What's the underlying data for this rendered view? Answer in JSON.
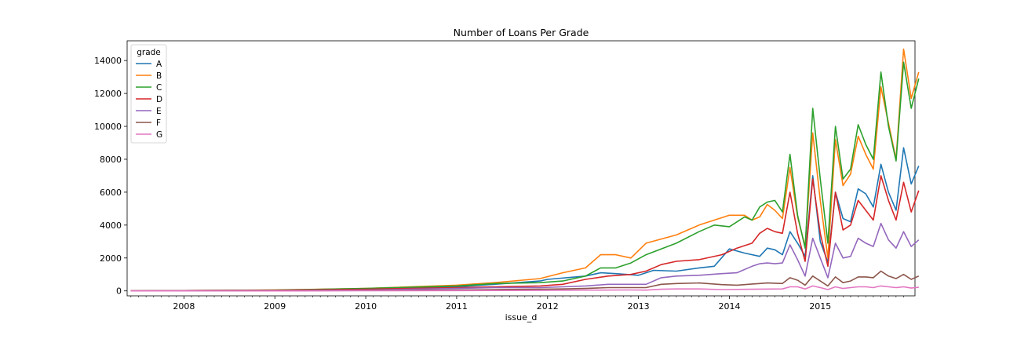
{
  "chart_data": {
    "type": "line",
    "title": "Number of Loans Per Grade",
    "xlabel": "issue_d",
    "ylabel": "",
    "xlim": [
      "2007-06",
      "2015-12"
    ],
    "ylim": [
      -300,
      15200
    ],
    "x_ticks": [
      "2008",
      "2009",
      "2010",
      "2011",
      "2012",
      "2013",
      "2014",
      "2015"
    ],
    "y_ticks": [
      0,
      2000,
      4000,
      6000,
      8000,
      10000,
      12000,
      14000
    ],
    "grid": false,
    "legend": {
      "title": "grade",
      "position": "top-left"
    },
    "series": [
      {
        "name": "A",
        "color": "#1f77b4",
        "points": [
          [
            "2007-06",
            0
          ],
          [
            "2008-01",
            20
          ],
          [
            "2009-01",
            30
          ],
          [
            "2010-01",
            100
          ],
          [
            "2011-01",
            250
          ],
          [
            "2011-06",
            400
          ],
          [
            "2011-12",
            600
          ],
          [
            "2012-01",
            700
          ],
          [
            "2012-06",
            900
          ],
          [
            "2012-08",
            1100
          ],
          [
            "2012-10",
            1050
          ],
          [
            "2013-01",
            950
          ],
          [
            "2013-03",
            1250
          ],
          [
            "2013-06",
            1200
          ],
          [
            "2013-09",
            1400
          ],
          [
            "2013-11",
            1500
          ],
          [
            "2014-01",
            2550
          ],
          [
            "2014-03",
            2300
          ],
          [
            "2014-05",
            2100
          ],
          [
            "2014-06",
            2600
          ],
          [
            "2014-07",
            2500
          ],
          [
            "2014-08",
            2200
          ],
          [
            "2014-09",
            3600
          ],
          [
            "2014-10",
            2900
          ],
          [
            "2014-11",
            2100
          ],
          [
            "2014-12",
            7000
          ],
          [
            "2015-01",
            3000
          ],
          [
            "2015-02",
            1750
          ],
          [
            "2015-03",
            6000
          ],
          [
            "2015-04",
            4400
          ],
          [
            "2015-05",
            4200
          ],
          [
            "2015-06",
            6200
          ],
          [
            "2015-07",
            5900
          ],
          [
            "2015-08",
            5100
          ],
          [
            "2015-09",
            7700
          ],
          [
            "2015-10",
            6000
          ],
          [
            "2015-11",
            4900
          ],
          [
            "2015-12",
            8700
          ],
          [
            "2016-01",
            6500
          ],
          [
            "2016-02",
            7600
          ]
        ]
      },
      {
        "name": "B",
        "color": "#ff7f0e",
        "points": [
          [
            "2007-06",
            0
          ],
          [
            "2008-01",
            20
          ],
          [
            "2009-01",
            60
          ],
          [
            "2010-01",
            150
          ],
          [
            "2011-01",
            350
          ],
          [
            "2011-06",
            500
          ],
          [
            "2011-12",
            750
          ],
          [
            "2012-03",
            1100
          ],
          [
            "2012-06",
            1400
          ],
          [
            "2012-08",
            2200
          ],
          [
            "2012-10",
            2200
          ],
          [
            "2012-12",
            2000
          ],
          [
            "2013-02",
            2900
          ],
          [
            "2013-06",
            3400
          ],
          [
            "2013-09",
            4000
          ],
          [
            "2013-11",
            4300
          ],
          [
            "2014-01",
            4600
          ],
          [
            "2014-03",
            4600
          ],
          [
            "2014-04",
            4300
          ],
          [
            "2014-05",
            4500
          ],
          [
            "2014-06",
            5250
          ],
          [
            "2014-07",
            4900
          ],
          [
            "2014-08",
            4400
          ],
          [
            "2014-09",
            7500
          ],
          [
            "2014-10",
            4500
          ],
          [
            "2014-11",
            2700
          ],
          [
            "2014-12",
            9600
          ],
          [
            "2015-01",
            5500
          ],
          [
            "2015-02",
            2000
          ],
          [
            "2015-03",
            9200
          ],
          [
            "2015-04",
            6400
          ],
          [
            "2015-05",
            7100
          ],
          [
            "2015-06",
            9400
          ],
          [
            "2015-07",
            8300
          ],
          [
            "2015-08",
            7400
          ],
          [
            "2015-09",
            12400
          ],
          [
            "2015-10",
            10200
          ],
          [
            "2015-11",
            8000
          ],
          [
            "2015-12",
            14700
          ],
          [
            "2016-01",
            11700
          ],
          [
            "2016-02",
            13300
          ]
        ]
      },
      {
        "name": "C",
        "color": "#2ca02c",
        "points": [
          [
            "2007-06",
            0
          ],
          [
            "2008-01",
            20
          ],
          [
            "2009-01",
            50
          ],
          [
            "2010-01",
            150
          ],
          [
            "2011-01",
            300
          ],
          [
            "2011-06",
            450
          ],
          [
            "2011-12",
            500
          ],
          [
            "2012-03",
            600
          ],
          [
            "2012-06",
            900
          ],
          [
            "2012-08",
            1400
          ],
          [
            "2012-10",
            1400
          ],
          [
            "2012-12",
            1700
          ],
          [
            "2013-02",
            2200
          ],
          [
            "2013-06",
            2900
          ],
          [
            "2013-09",
            3600
          ],
          [
            "2013-11",
            4000
          ],
          [
            "2014-01",
            3900
          ],
          [
            "2014-03",
            4500
          ],
          [
            "2014-04",
            4300
          ],
          [
            "2014-05",
            5100
          ],
          [
            "2014-06",
            5400
          ],
          [
            "2014-07",
            5500
          ],
          [
            "2014-08",
            4800
          ],
          [
            "2014-09",
            8300
          ],
          [
            "2014-10",
            4600
          ],
          [
            "2014-11",
            2600
          ],
          [
            "2014-12",
            11100
          ],
          [
            "2015-01",
            6800
          ],
          [
            "2015-02",
            2900
          ],
          [
            "2015-03",
            10000
          ],
          [
            "2015-04",
            6800
          ],
          [
            "2015-05",
            7400
          ],
          [
            "2015-06",
            10100
          ],
          [
            "2015-07",
            8900
          ],
          [
            "2015-08",
            8000
          ],
          [
            "2015-09",
            13300
          ],
          [
            "2015-10",
            10000
          ],
          [
            "2015-11",
            7900
          ],
          [
            "2015-12",
            13900
          ],
          [
            "2016-01",
            11100
          ],
          [
            "2016-02",
            12900
          ]
        ]
      },
      {
        "name": "D",
        "color": "#d62728",
        "points": [
          [
            "2007-06",
            0
          ],
          [
            "2008-01",
            20
          ],
          [
            "2009-01",
            40
          ],
          [
            "2010-01",
            100
          ],
          [
            "2011-01",
            200
          ],
          [
            "2011-06",
            250
          ],
          [
            "2011-12",
            300
          ],
          [
            "2012-03",
            400
          ],
          [
            "2012-06",
            700
          ],
          [
            "2012-09",
            900
          ],
          [
            "2012-12",
            1000
          ],
          [
            "2013-02",
            1200
          ],
          [
            "2013-04",
            1600
          ],
          [
            "2013-06",
            1800
          ],
          [
            "2013-09",
            1900
          ],
          [
            "2013-12",
            2200
          ],
          [
            "2014-02",
            2600
          ],
          [
            "2014-04",
            2900
          ],
          [
            "2014-05",
            3500
          ],
          [
            "2014-06",
            3800
          ],
          [
            "2014-07",
            3600
          ],
          [
            "2014-08",
            3500
          ],
          [
            "2014-09",
            6000
          ],
          [
            "2014-10",
            3500
          ],
          [
            "2014-11",
            1800
          ],
          [
            "2014-12",
            6800
          ],
          [
            "2015-01",
            3500
          ],
          [
            "2015-02",
            1500
          ],
          [
            "2015-03",
            6000
          ],
          [
            "2015-04",
            3700
          ],
          [
            "2015-05",
            4000
          ],
          [
            "2015-06",
            5500
          ],
          [
            "2015-07",
            4900
          ],
          [
            "2015-08",
            4300
          ],
          [
            "2015-09",
            7000
          ],
          [
            "2015-10",
            5500
          ],
          [
            "2015-11",
            4300
          ],
          [
            "2015-12",
            6600
          ],
          [
            "2016-01",
            4800
          ],
          [
            "2016-02",
            6100
          ]
        ]
      },
      {
        "name": "E",
        "color": "#9467bd",
        "points": [
          [
            "2007-06",
            0
          ],
          [
            "2008-01",
            10
          ],
          [
            "2009-01",
            20
          ],
          [
            "2010-01",
            60
          ],
          [
            "2011-01",
            150
          ],
          [
            "2011-06",
            200
          ],
          [
            "2011-12",
            200
          ],
          [
            "2012-03",
            250
          ],
          [
            "2012-06",
            300
          ],
          [
            "2012-09",
            400
          ],
          [
            "2012-12",
            400
          ],
          [
            "2013-02",
            400
          ],
          [
            "2013-04",
            800
          ],
          [
            "2013-06",
            900
          ],
          [
            "2013-09",
            950
          ],
          [
            "2013-12",
            1050
          ],
          [
            "2014-02",
            1100
          ],
          [
            "2014-04",
            1500
          ],
          [
            "2014-05",
            1650
          ],
          [
            "2014-06",
            1700
          ],
          [
            "2014-07",
            1650
          ],
          [
            "2014-08",
            1700
          ],
          [
            "2014-09",
            2800
          ],
          [
            "2014-10",
            1900
          ],
          [
            "2014-11",
            900
          ],
          [
            "2014-12",
            3200
          ],
          [
            "2015-01",
            2000
          ],
          [
            "2015-02",
            800
          ],
          [
            "2015-03",
            2900
          ],
          [
            "2015-04",
            2000
          ],
          [
            "2015-05",
            2100
          ],
          [
            "2015-06",
            3200
          ],
          [
            "2015-07",
            2900
          ],
          [
            "2015-08",
            2700
          ],
          [
            "2015-09",
            4100
          ],
          [
            "2015-10",
            3100
          ],
          [
            "2015-11",
            2600
          ],
          [
            "2015-12",
            3600
          ],
          [
            "2016-01",
            2700
          ],
          [
            "2016-02",
            3100
          ]
        ]
      },
      {
        "name": "F",
        "color": "#8c564b",
        "points": [
          [
            "2007-06",
            0
          ],
          [
            "2008-01",
            10
          ],
          [
            "2009-01",
            10
          ],
          [
            "2010-01",
            30
          ],
          [
            "2011-01",
            60
          ],
          [
            "2011-06",
            80
          ],
          [
            "2011-12",
            100
          ],
          [
            "2012-03",
            120
          ],
          [
            "2012-06",
            150
          ],
          [
            "2012-09",
            200
          ],
          [
            "2012-12",
            200
          ],
          [
            "2013-02",
            200
          ],
          [
            "2013-04",
            400
          ],
          [
            "2013-06",
            450
          ],
          [
            "2013-09",
            480
          ],
          [
            "2013-12",
            380
          ],
          [
            "2014-02",
            350
          ],
          [
            "2014-04",
            420
          ],
          [
            "2014-05",
            450
          ],
          [
            "2014-06",
            480
          ],
          [
            "2014-07",
            470
          ],
          [
            "2014-08",
            450
          ],
          [
            "2014-09",
            800
          ],
          [
            "2014-10",
            650
          ],
          [
            "2014-11",
            350
          ],
          [
            "2014-12",
            900
          ],
          [
            "2015-01",
            600
          ],
          [
            "2015-02",
            300
          ],
          [
            "2015-03",
            850
          ],
          [
            "2015-04",
            500
          ],
          [
            "2015-05",
            600
          ],
          [
            "2015-06",
            850
          ],
          [
            "2015-07",
            850
          ],
          [
            "2015-08",
            800
          ],
          [
            "2015-09",
            1200
          ],
          [
            "2015-10",
            900
          ],
          [
            "2015-11",
            750
          ],
          [
            "2015-12",
            1000
          ],
          [
            "2016-01",
            700
          ],
          [
            "2016-02",
            900
          ]
        ]
      },
      {
        "name": "G",
        "color": "#e377c2",
        "points": [
          [
            "2007-06",
            0
          ],
          [
            "2008-01",
            0
          ],
          [
            "2009-01",
            0
          ],
          [
            "2010-01",
            10
          ],
          [
            "2011-01",
            20
          ],
          [
            "2011-12",
            30
          ],
          [
            "2012-06",
            50
          ],
          [
            "2012-12",
            60
          ],
          [
            "2013-02",
            50
          ],
          [
            "2013-04",
            100
          ],
          [
            "2013-06",
            120
          ],
          [
            "2013-09",
            120
          ],
          [
            "2013-12",
            80
          ],
          [
            "2014-04",
            100
          ],
          [
            "2014-08",
            120
          ],
          [
            "2014-09",
            250
          ],
          [
            "2014-10",
            250
          ],
          [
            "2014-11",
            120
          ],
          [
            "2014-12",
            300
          ],
          [
            "2015-01",
            200
          ],
          [
            "2015-02",
            80
          ],
          [
            "2015-03",
            250
          ],
          [
            "2015-04",
            150
          ],
          [
            "2015-05",
            200
          ],
          [
            "2015-06",
            250
          ],
          [
            "2015-07",
            250
          ],
          [
            "2015-08",
            200
          ],
          [
            "2015-09",
            300
          ],
          [
            "2015-10",
            250
          ],
          [
            "2015-11",
            200
          ],
          [
            "2015-12",
            250
          ],
          [
            "2016-01",
            170
          ],
          [
            "2016-02",
            220
          ]
        ]
      }
    ]
  }
}
